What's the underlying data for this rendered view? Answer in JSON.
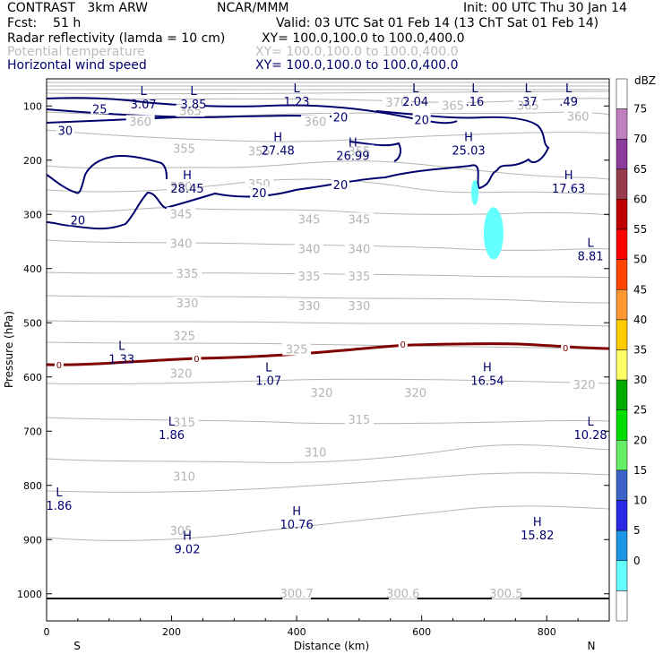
{
  "header": {
    "model": "CONTRAST   3km ARW",
    "center": "NCAR/MMM",
    "init": "Init: 00 UTC Thu 30 Jan 14",
    "fcst": "Fcst:    51 h",
    "valid": "Valid: 03 UTC Sat 01 Feb 14 (13 ChT Sat 01 Feb 14)",
    "fields": [
      {
        "name": "Radar reflectivity (lamda = 10 cm)",
        "xy": "XY= 100.0,100.0 to 100.0,400.0",
        "color": "#000000"
      },
      {
        "name": "Potential temperature",
        "xy": "XY= 100.0,100.0 to 100.0,400.0",
        "color": "#bbbbbb"
      },
      {
        "name": "Horizontal wind speed",
        "xy": "XY= 100.0,100.0 to 100.0,400.0",
        "color": "#00006e"
      }
    ]
  },
  "chart_data": {
    "type": "cross-section",
    "xlabel": "Distance (km)",
    "ylabel": "Pressure (hPa)",
    "xlim": [
      0,
      900
    ],
    "ylim": [
      1050,
      50
    ],
    "x_ticks": [
      "0",
      "200",
      "400",
      "600",
      "800"
    ],
    "x_tick_values": [
      0,
      200,
      400,
      600,
      800
    ],
    "y_ticks": [
      "100",
      "200",
      "300",
      "400",
      "500",
      "600",
      "700",
      "800",
      "900",
      "1000"
    ],
    "y_tick_values": [
      100,
      200,
      300,
      400,
      500,
      600,
      700,
      800,
      900,
      1000
    ],
    "left_end": "S",
    "right_end": "N",
    "theta_contours": [
      {
        "label": "300.7",
        "x": 400,
        "p": 1000
      },
      {
        "label": "300.6",
        "x": 570,
        "p": 1000
      },
      {
        "label": "300.5",
        "x": 735,
        "p": 1000
      },
      {
        "label": "305",
        "x": 215,
        "p": 885
      },
      {
        "label": "310",
        "x": 220,
        "p": 785
      },
      {
        "label": "310",
        "x": 430,
        "p": 740
      },
      {
        "label": "315",
        "x": 220,
        "p": 685
      },
      {
        "label": "315",
        "x": 500,
        "p": 680
      },
      {
        "label": "320",
        "x": 215,
        "p": 595
      },
      {
        "label": "320",
        "x": 440,
        "p": 630
      },
      {
        "label": "320",
        "x": 590,
        "p": 630
      },
      {
        "label": "320",
        "x": 860,
        "p": 615
      },
      {
        "label": "325",
        "x": 220,
        "p": 525
      },
      {
        "label": "325",
        "x": 400,
        "p": 550
      },
      {
        "label": "330",
        "x": 225,
        "p": 465
      },
      {
        "label": "330",
        "x": 420,
        "p": 470
      },
      {
        "label": "330",
        "x": 500,
        "p": 470
      },
      {
        "label": "335",
        "x": 225,
        "p": 410
      },
      {
        "label": "335",
        "x": 420,
        "p": 415
      },
      {
        "label": "335",
        "x": 500,
        "p": 415
      },
      {
        "label": "340",
        "x": 215,
        "p": 355
      },
      {
        "label": "340",
        "x": 420,
        "p": 365
      },
      {
        "label": "340",
        "x": 500,
        "p": 365
      },
      {
        "label": "345",
        "x": 215,
        "p": 300
      },
      {
        "label": "345",
        "x": 420,
        "p": 310
      },
      {
        "label": "345",
        "x": 500,
        "p": 310
      },
      {
        "label": "350",
        "x": 215,
        "p": 250
      },
      {
        "label": "350",
        "x": 340,
        "p": 245
      },
      {
        "label": "355",
        "x": 220,
        "p": 180
      },
      {
        "label": "355",
        "x": 340,
        "p": 185
      },
      {
        "label": "355",
        "x": 500,
        "p": 185
      },
      {
        "label": "360",
        "x": 150,
        "p": 130
      },
      {
        "label": "360",
        "x": 430,
        "p": 130
      },
      {
        "label": "360",
        "x": 850,
        "p": 120
      },
      {
        "label": "365",
        "x": 230,
        "p": 110
      },
      {
        "label": "365",
        "x": 650,
        "p": 100
      },
      {
        "label": "365",
        "x": 770,
        "p": 100
      },
      {
        "label": "370",
        "x": 560,
        "p": 95
      }
    ],
    "freezing_level": {
      "label": "0",
      "labels_at": [
        20,
        240,
        570,
        830
      ]
    },
    "wind_contours": [
      {
        "label": "25",
        "x": 85,
        "p": 105
      },
      {
        "label": "30",
        "x": 30,
        "p": 145
      },
      {
        "label": "20",
        "x": 470,
        "p": 120
      },
      {
        "label": "20",
        "x": 600,
        "p": 125
      },
      {
        "label": "20",
        "x": 340,
        "p": 260
      },
      {
        "label": "20",
        "x": 470,
        "p": 245
      },
      {
        "label": "20",
        "x": 50,
        "p": 310
      }
    ],
    "extrema": [
      {
        "kind": "L",
        "value": "3.07",
        "x": 155,
        "p": 80,
        "color": "#00006e"
      },
      {
        "kind": "L",
        "value": "3.85",
        "x": 235,
        "p": 80,
        "color": "#00006e"
      },
      {
        "kind": "L",
        "value": "1.23",
        "x": 400,
        "p": 75,
        "color": "#00006e"
      },
      {
        "kind": "L",
        "value": "2.04",
        "x": 590,
        "p": 75,
        "color": "#00006e"
      },
      {
        "kind": "L",
        "value": ".16",
        "x": 685,
        "p": 75,
        "color": "#00006e"
      },
      {
        "kind": "L",
        "value": ".37",
        "x": 770,
        "p": 75,
        "color": "#00006e"
      },
      {
        "kind": "L",
        "value": ".49",
        "x": 835,
        "p": 75,
        "color": "#00006e"
      },
      {
        "kind": "H",
        "value": "27.48",
        "x": 370,
        "p": 165,
        "color": "#00006e"
      },
      {
        "kind": "H",
        "value": "26.99",
        "x": 490,
        "p": 175,
        "color": "#00006e"
      },
      {
        "kind": "H",
        "value": "25.03",
        "x": 675,
        "p": 165,
        "color": "#00006e"
      },
      {
        "kind": "H",
        "value": "28.45",
        "x": 225,
        "p": 235,
        "color": "#00006e"
      },
      {
        "kind": "H",
        "value": "17.63",
        "x": 835,
        "p": 235,
        "color": "#00006e"
      },
      {
        "kind": "L",
        "value": "8.81",
        "x": 870,
        "p": 360,
        "color": "#00006e"
      },
      {
        "kind": "L",
        "value": "1.33",
        "x": 120,
        "p": 550,
        "color": "#00006e"
      },
      {
        "kind": "L",
        "value": "1.07",
        "x": 355,
        "p": 590,
        "color": "#00006e"
      },
      {
        "kind": "H",
        "value": "16.54",
        "x": 705,
        "p": 590,
        "color": "#00006e"
      },
      {
        "kind": "L",
        "value": "1.86",
        "x": 200,
        "p": 690,
        "color": "#00006e"
      },
      {
        "kind": "L",
        "value": "10.28",
        "x": 870,
        "p": 690,
        "color": "#00006e"
      },
      {
        "kind": "L",
        "value": "1.86",
        "x": 20,
        "p": 820,
        "color": "#00006e"
      },
      {
        "kind": "H",
        "value": "10.76",
        "x": 400,
        "p": 855,
        "color": "#00006e"
      },
      {
        "kind": "H",
        "value": "9.02",
        "x": 225,
        "p": 900,
        "color": "#00006e"
      },
      {
        "kind": "H",
        "value": "15.82",
        "x": 785,
        "p": 875,
        "color": "#00006e"
      }
    ],
    "colorbar": {
      "title": "dBZ",
      "labels": [
        "75",
        "70",
        "65",
        "60",
        "55",
        "50",
        "45",
        "40",
        "35",
        "30",
        "25",
        "20",
        "15",
        "10",
        "5",
        "0"
      ],
      "colors": [
        "#ffffff",
        "#c080c0",
        "#8c3c9c",
        "#963c4b",
        "#c00000",
        "#ff0000",
        "#ff4500",
        "#ff9933",
        "#ffcc00",
        "#ffff66",
        "#00aa00",
        "#00dd00",
        "#66ee66",
        "#3c64c8",
        "#2828e6",
        "#1e96e6",
        "#64ffff",
        "#ffffff"
      ]
    },
    "reflectivity_echoes": [
      {
        "x": 685,
        "p": 260,
        "dbz": 5
      },
      {
        "x": 715,
        "p": 335,
        "dbz": 5
      }
    ]
  }
}
